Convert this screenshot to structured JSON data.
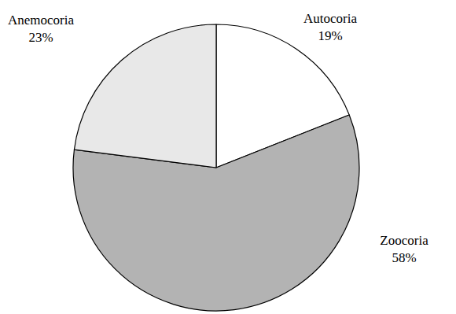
{
  "chart_data": {
    "type": "pie",
    "categories": [
      "Autocoria",
      "Zoocoria",
      "Anemocoria"
    ],
    "values": [
      19,
      58,
      23
    ],
    "value_labels": [
      "19%",
      "58%",
      "23%"
    ],
    "colors": [
      "#ffffff",
      "#b3b3b3",
      "#e8e8e8"
    ],
    "data_labels": true
  }
}
